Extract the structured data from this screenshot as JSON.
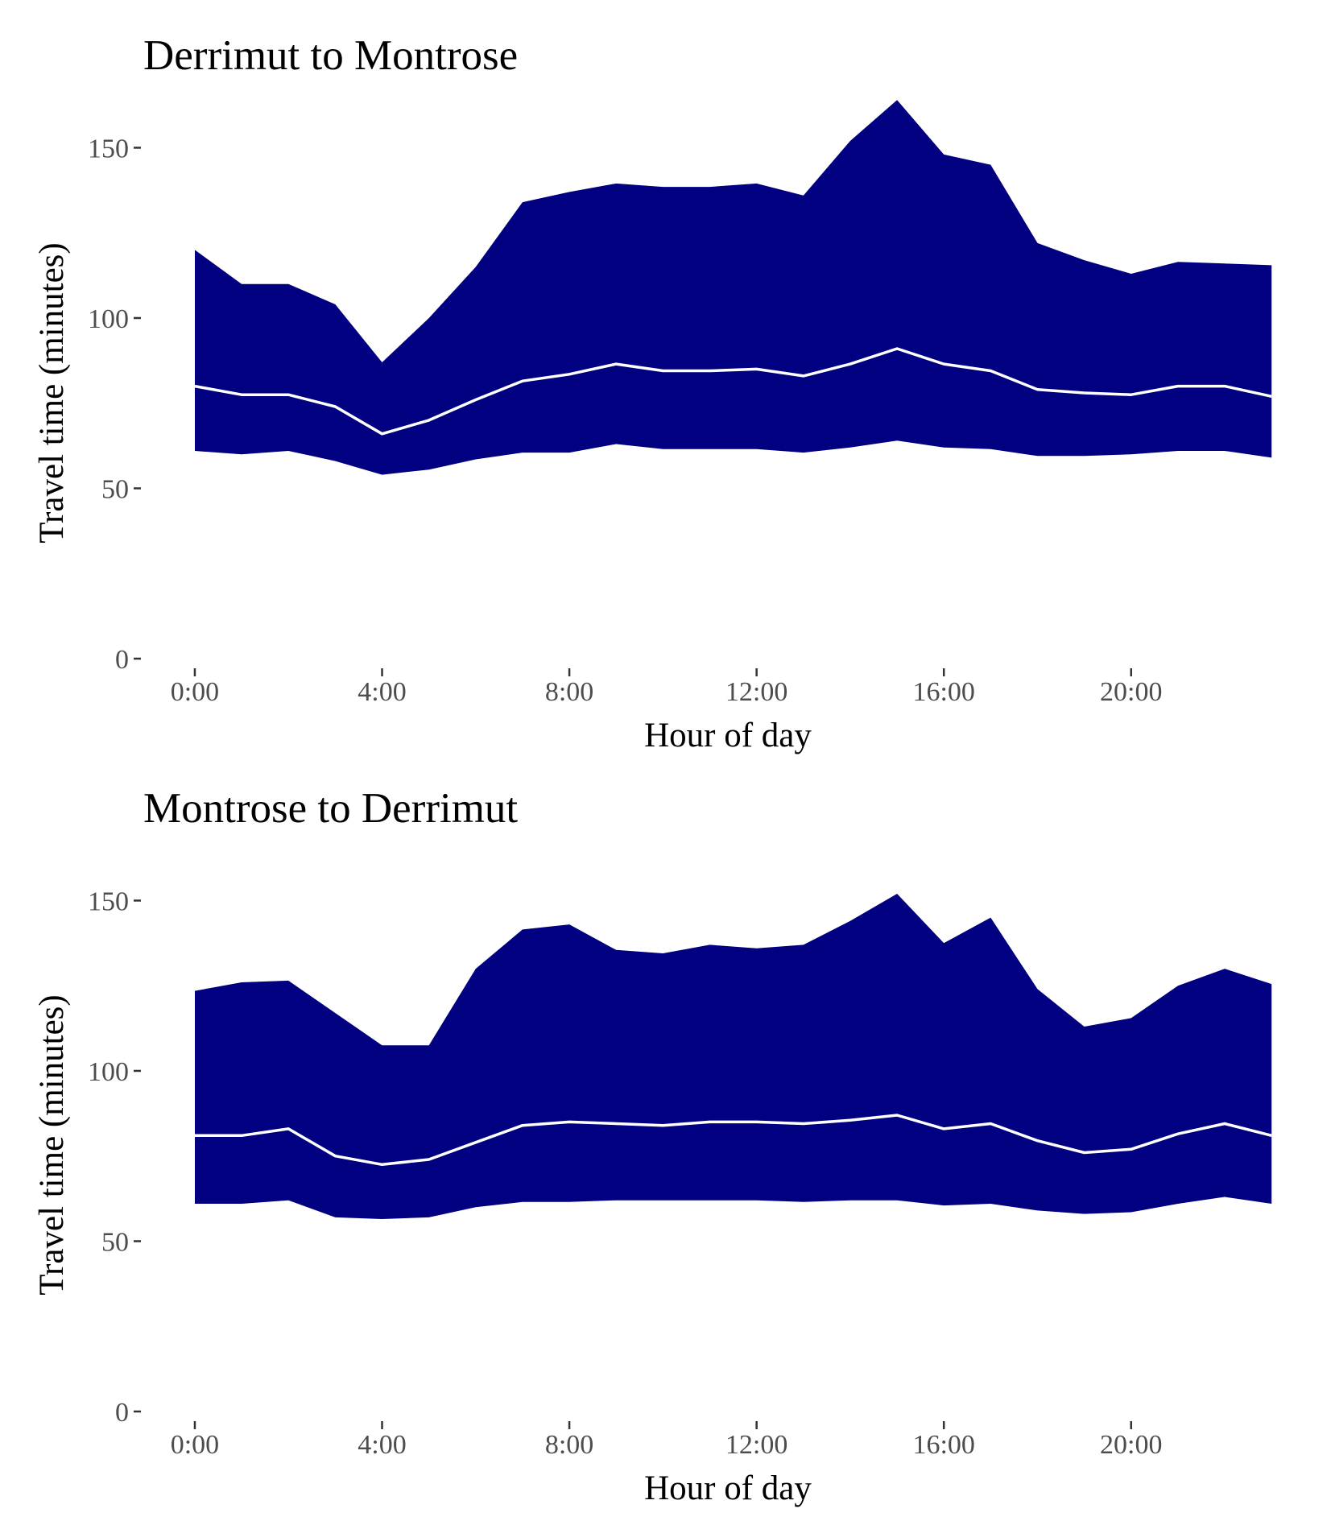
{
  "chart_data": [
    {
      "type": "area",
      "title": "Derrimut to Montrose",
      "xlabel": "Hour of day",
      "ylabel": "Travel time (minutes)",
      "x": [
        0,
        1,
        2,
        3,
        4,
        5,
        6,
        7,
        8,
        9,
        10,
        11,
        12,
        13,
        14,
        15,
        16,
        17,
        18,
        19,
        20,
        21,
        22,
        23
      ],
      "x_ticks": [
        0,
        4,
        8,
        12,
        16,
        20
      ],
      "x_tick_labels": [
        "0:00",
        "4:00",
        "8:00",
        "12:00",
        "16:00",
        "20:00"
      ],
      "y_ticks": [
        0,
        50,
        100,
        150
      ],
      "y_tick_labels": [
        "0",
        "50",
        "100",
        "150"
      ],
      "xlim": [
        -1.1,
        23.1
      ],
      "ylim": [
        0,
        165
      ],
      "grid": false,
      "band_color": "#000080",
      "line_color": "#ffffff",
      "series": [
        {
          "values_low": [
            61,
            60,
            61,
            58,
            54,
            55.5,
            58.5,
            60.5,
            60.5,
            63,
            61.5,
            61.5,
            61.5,
            60.5,
            62,
            64,
            62,
            61.5,
            59.5,
            59.5,
            60,
            61,
            61,
            59
          ]
        },
        {
          "values_high": [
            120,
            110,
            110,
            104,
            87,
            100,
            115,
            134,
            137,
            139.5,
            138.5,
            138.5,
            139.5,
            136,
            152,
            164,
            148,
            145,
            122,
            117,
            113,
            116.5,
            116,
            115.5
          ]
        },
        {
          "values": [
            80,
            77.5,
            77.5,
            74,
            66,
            70,
            76,
            81.5,
            83.5,
            86.5,
            84.5,
            84.5,
            85,
            83,
            86.5,
            91,
            86.5,
            84.5,
            79,
            78,
            77.5,
            80,
            80,
            77
          ]
        }
      ]
    },
    {
      "type": "area",
      "title": "Montrose to Derrimut",
      "xlabel": "Hour of day",
      "ylabel": "Travel time (minutes)",
      "x": [
        0,
        1,
        2,
        3,
        4,
        5,
        6,
        7,
        8,
        9,
        10,
        11,
        12,
        13,
        14,
        15,
        16,
        17,
        18,
        19,
        20,
        21,
        22,
        23
      ],
      "x_ticks": [
        0,
        4,
        8,
        12,
        16,
        20
      ],
      "x_tick_labels": [
        "0:00",
        "4:00",
        "8:00",
        "12:00",
        "16:00",
        "20:00"
      ],
      "y_ticks": [
        0,
        50,
        100,
        150
      ],
      "y_tick_labels": [
        "0",
        "50",
        "100",
        "150"
      ],
      "xlim": [
        -1.1,
        23.1
      ],
      "ylim": [
        0,
        165
      ],
      "grid": false,
      "band_color": "#000080",
      "line_color": "#ffffff",
      "series": [
        {
          "values_low": [
            61,
            61,
            62,
            57,
            56.5,
            57,
            60,
            61.5,
            61.5,
            62,
            62,
            62,
            62,
            61.5,
            62,
            62,
            60.5,
            61,
            59,
            58,
            58.5,
            61,
            63,
            61
          ]
        },
        {
          "values_high": [
            123.5,
            126,
            126.5,
            117,
            107.5,
            107.5,
            130,
            141.5,
            143,
            135.5,
            134.5,
            137,
            136,
            137,
            144,
            152,
            137.5,
            145,
            124,
            113,
            115.5,
            125,
            130,
            125.5
          ]
        },
        {
          "values": [
            81,
            81,
            83,
            75,
            72.5,
            74,
            79,
            84,
            85,
            84.5,
            84,
            85,
            85,
            84.5,
            85.5,
            87,
            83,
            84.5,
            79.5,
            76,
            77,
            81.5,
            84.5,
            81
          ]
        }
      ]
    }
  ]
}
